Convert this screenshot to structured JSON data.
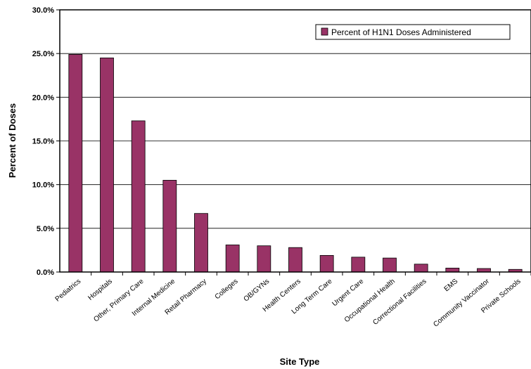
{
  "chart_data": {
    "type": "bar",
    "categories": [
      "Pediatrics",
      "Hospitals",
      "Other, Primary Care",
      "Internal Medicine",
      "Retail Pharmacy",
      "Colleges",
      "OB/GYNs",
      "Health Centers",
      "Long Term Care",
      "Urgent Care",
      "Occupational Health",
      "Correctional Facilities",
      "EMS",
      "Community Vaccinator",
      "Private Schools"
    ],
    "series": [
      {
        "name": "Percent of H1N1 Doses Administered",
        "values": [
          24.9,
          24.5,
          17.3,
          10.5,
          6.7,
          3.1,
          3.0,
          2.8,
          1.9,
          1.7,
          1.6,
          0.9,
          0.45,
          0.4,
          0.3
        ],
        "color": "#993366"
      }
    ],
    "title": "",
    "xlabel": "Site Type",
    "ylabel": "Percent of Doses",
    "ylim": [
      0,
      30
    ],
    "yticks": [
      "0.0%",
      "5.0%",
      "10.0%",
      "15.0%",
      "20.0%",
      "25.0%",
      "30.0%"
    ],
    "grid": true,
    "legend_position": "top-right"
  }
}
